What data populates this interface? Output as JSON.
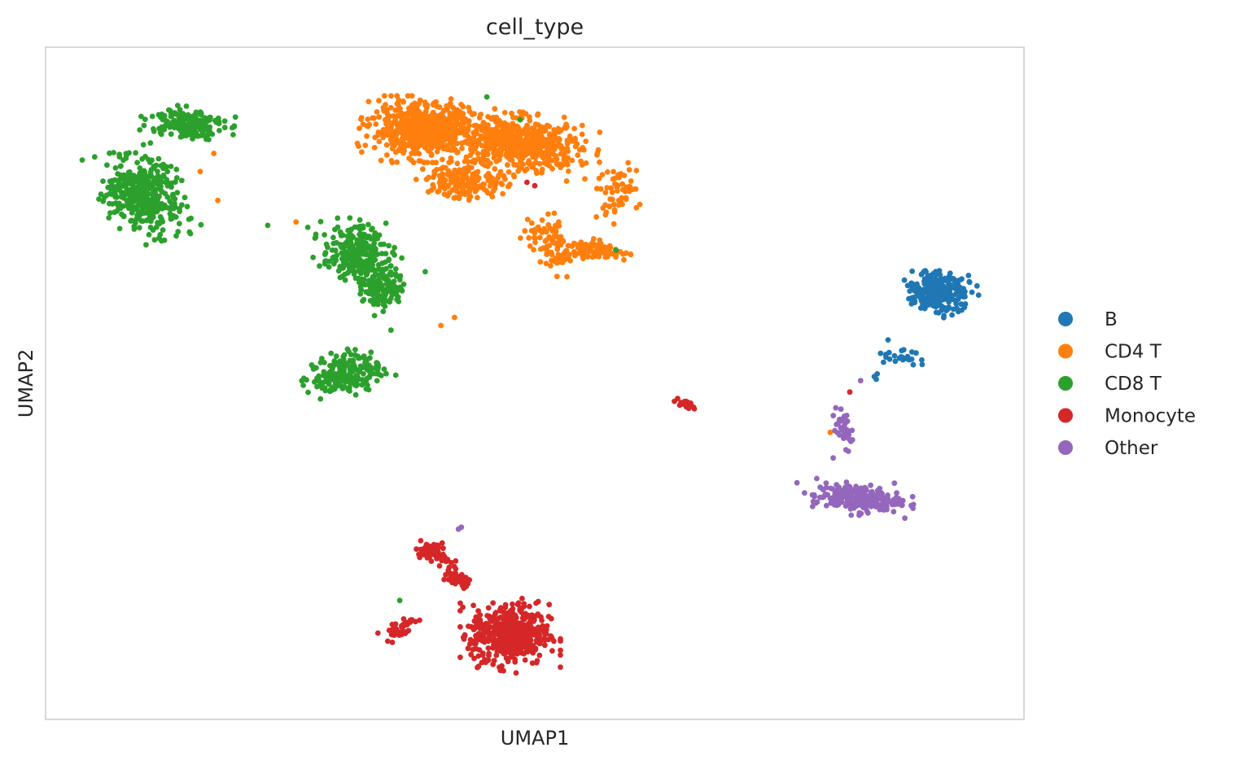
{
  "chart_data": {
    "type": "scatter",
    "title": "cell_type",
    "xlabel": "UMAP1",
    "ylabel": "UMAP2",
    "xlim": [
      0,
      100
    ],
    "ylim": [
      0,
      100
    ],
    "grid": false,
    "ticks_shown": false,
    "legend_position": "right",
    "series": [
      {
        "name": "B",
        "color": "#1f77b4",
        "clusters": [
          {
            "center": [
              91.2,
              63.6
            ],
            "spread": [
              2.4,
              2.3
            ],
            "rotation": -30,
            "count": 260
          },
          {
            "center": [
              87.5,
              54.0
            ],
            "spread": [
              1.6,
              1.2
            ],
            "rotation": -35,
            "count": 24
          }
        ],
        "points": [
          [
            85.0,
            51.4
          ],
          [
            84.7,
            51.0
          ],
          [
            84.9,
            50.6
          ]
        ]
      },
      {
        "name": "CD4 T",
        "color": "#ff7f0e",
        "clusters": [
          {
            "center": [
              38.5,
              87.8
            ],
            "spread": [
              4.2,
              3.1
            ],
            "rotation": 0,
            "count": 620
          },
          {
            "center": [
              48.5,
              85.5
            ],
            "spread": [
              5.0,
              3.0
            ],
            "rotation": -10,
            "count": 560
          },
          {
            "center": [
              43.0,
              80.0
            ],
            "spread": [
              3.2,
              2.0
            ],
            "rotation": 0,
            "count": 180
          },
          {
            "center": [
              52.0,
              70.5
            ],
            "spread": [
              1.8,
              3.0
            ],
            "rotation": 20,
            "count": 90
          },
          {
            "center": [
              56.5,
              69.8
            ],
            "spread": [
              2.6,
              1.0
            ],
            "rotation": -10,
            "count": 90
          },
          {
            "center": [
              58.0,
              78.5
            ],
            "spread": [
              2.0,
              3.0
            ],
            "rotation": 0,
            "count": 60
          }
        ],
        "points": [
          [
            16.2,
            89.4
          ],
          [
            17.2,
            84.2
          ],
          [
            15.8,
            81.5
          ],
          [
            17.6,
            77.2
          ],
          [
            25.6,
            74.0
          ],
          [
            40.4,
            58.6
          ],
          [
            41.8,
            59.8
          ],
          [
            80.2,
            42.7
          ]
        ]
      },
      {
        "name": "CD8 T",
        "color": "#2ca02c",
        "clusters": [
          {
            "center": [
              14.5,
              88.7
            ],
            "spread": [
              3.0,
              1.8
            ],
            "rotation": -5,
            "count": 180
          },
          {
            "center": [
              10.0,
              78.0
            ],
            "spread": [
              2.8,
              4.4
            ],
            "rotation": 20,
            "count": 420
          },
          {
            "center": [
              31.5,
              69.5
            ],
            "spread": [
              2.6,
              3.2
            ],
            "rotation": 0,
            "count": 240
          },
          {
            "center": [
              34.5,
              64.5
            ],
            "spread": [
              1.6,
              2.8
            ],
            "rotation": 0,
            "count": 130
          },
          {
            "center": [
              30.8,
              51.5
            ],
            "spread": [
              3.0,
              2.2
            ],
            "rotation": 25,
            "count": 220
          }
        ],
        "points": [
          [
            45.1,
            92.6
          ],
          [
            48.5,
            89.2
          ],
          [
            58.3,
            69.8
          ],
          [
            36.2,
            17.7
          ],
          [
            22.7,
            73.5
          ],
          [
            26.8,
            73.2
          ],
          [
            38.8,
            66.6
          ],
          [
            35.3,
            57.9
          ]
        ]
      },
      {
        "name": "Monocyte",
        "color": "#d62728",
        "clusters": [
          {
            "center": [
              47.5,
              12.6
            ],
            "spread": [
              3.2,
              3.6
            ],
            "rotation": 0,
            "count": 480
          },
          {
            "center": [
              39.8,
              24.8
            ],
            "spread": [
              1.6,
              1.0
            ],
            "rotation": -45,
            "count": 70
          },
          {
            "center": [
              42.0,
              21.0
            ],
            "spread": [
              1.6,
              0.8
            ],
            "rotation": -45,
            "count": 40
          },
          {
            "center": [
              36.0,
              13.5
            ],
            "spread": [
              1.6,
              1.0
            ],
            "rotation": 30,
            "count": 40
          },
          {
            "center": [
              65.5,
              46.9
            ],
            "spread": [
              0.8,
              0.3
            ],
            "rotation": -30,
            "count": 28
          }
        ],
        "points": [
          [
            50.0,
            79.4
          ],
          [
            49.2,
            79.9
          ],
          [
            82.2,
            48.7
          ]
        ]
      },
      {
        "name": "Other",
        "color": "#9467bd",
        "clusters": [
          {
            "center": [
              83.0,
              32.9
            ],
            "spread": [
              3.6,
              1.6
            ],
            "rotation": -5,
            "count": 240
          },
          {
            "center": [
              81.6,
              43.3
            ],
            "spread": [
              0.7,
              2.4
            ],
            "rotation": 10,
            "count": 45
          }
        ],
        "points": [
          [
            42.5,
            28.6
          ],
          [
            42.2,
            28.3
          ],
          [
            83.3,
            50.4
          ],
          [
            80.5,
            38.9
          ],
          [
            76.8,
            35.2
          ]
        ]
      }
    ]
  }
}
